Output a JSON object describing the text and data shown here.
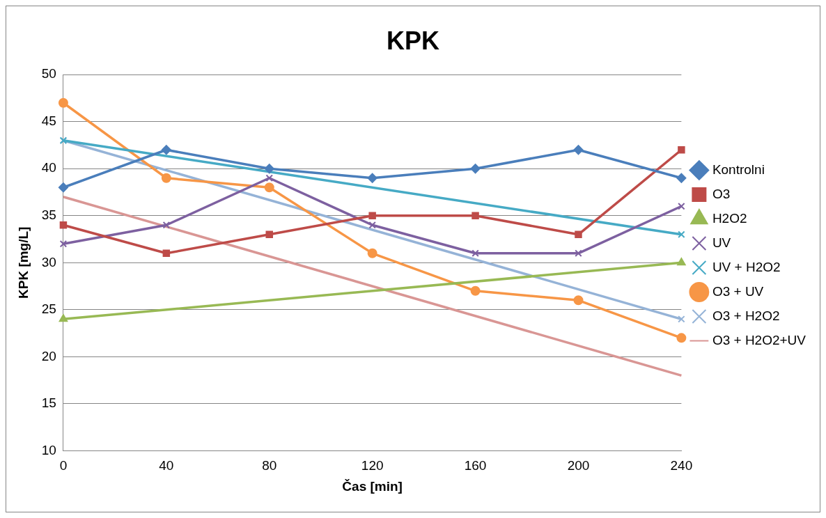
{
  "chart_data": {
    "type": "line",
    "title": "KPK",
    "xlabel": "Čas [min]",
    "ylabel": "KPK [mg/L]",
    "categories": [
      "0",
      "40",
      "80",
      "120",
      "160",
      "200",
      "240"
    ],
    "ylim": [
      10,
      50
    ],
    "yticks": [
      10,
      15,
      20,
      25,
      30,
      35,
      40,
      45,
      50
    ],
    "grid": "y",
    "legend": "right",
    "line_style": "solid",
    "series": [
      {
        "name": "Kontrolni",
        "color": "#4a7ebb",
        "marker": "diamond",
        "values": [
          38,
          42,
          40,
          39,
          40,
          42,
          39
        ]
      },
      {
        "name": "O3",
        "color": "#be4b48",
        "marker": "square",
        "values": [
          34,
          31,
          33,
          35,
          35,
          33,
          42
        ]
      },
      {
        "name": "H2O2",
        "color": "#98b954",
        "marker": "triangle",
        "values": [
          24,
          null,
          null,
          null,
          null,
          null,
          30
        ]
      },
      {
        "name": "UV",
        "color": "#7d60a0",
        "marker": "cross",
        "values": [
          32,
          34,
          39,
          34,
          31,
          31,
          36
        ]
      },
      {
        "name": "UV + H2O2",
        "color": "#46aac5",
        "marker": "cross",
        "values": [
          43,
          null,
          null,
          null,
          null,
          null,
          33
        ]
      },
      {
        "name": "O3 + UV",
        "color": "#f79646",
        "marker": "circle",
        "values": [
          47,
          39,
          38,
          31,
          27,
          26,
          22
        ]
      },
      {
        "name": "O3 + H2O2",
        "color": "#95b3d7",
        "marker": "cross",
        "values": [
          43,
          null,
          null,
          null,
          null,
          null,
          24
        ]
      },
      {
        "name": "O3 + H2O2+UV",
        "color": "#d99694",
        "marker": "none",
        "values": [
          37,
          null,
          null,
          null,
          null,
          null,
          18
        ]
      }
    ]
  }
}
